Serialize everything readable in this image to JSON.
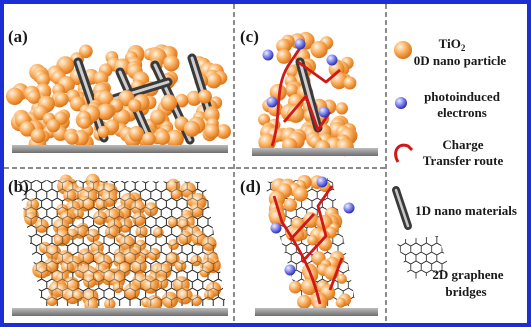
{
  "panels": [
    {
      "label": "(a)"
    },
    {
      "label": "(b)"
    },
    {
      "label": "(c)"
    },
    {
      "label": "(d)"
    }
  ],
  "legend": [
    {
      "lines": [
        "TiO",
        "0D nano particle"
      ],
      "subscript": "2"
    },
    {
      "lines": [
        "photoinduced",
        "electrons"
      ]
    },
    {
      "lines": [
        "Charge",
        "Transfer route"
      ]
    },
    {
      "lines": [
        "1D nano materials"
      ]
    },
    {
      "lines": [
        "2D graphene",
        "bridges"
      ]
    }
  ]
}
